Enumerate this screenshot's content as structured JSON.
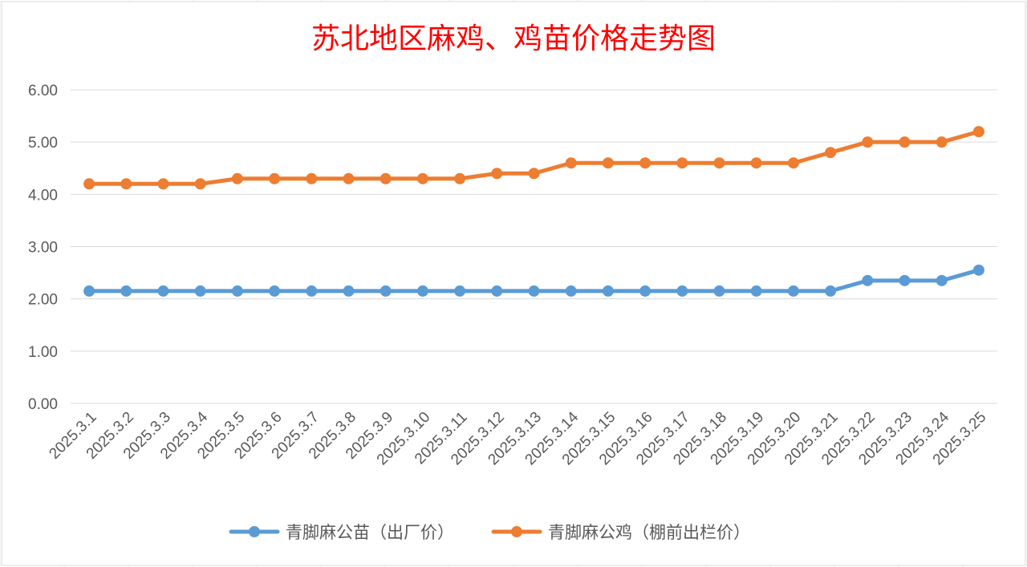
{
  "chart_data": {
    "type": "line",
    "title": "苏北地区麻鸡、鸡苗价格走势图",
    "xlabel": "",
    "ylabel": "",
    "ylim": [
      0,
      6
    ],
    "yticks": [
      "0.00",
      "1.00",
      "2.00",
      "3.00",
      "4.00",
      "5.00",
      "6.00"
    ],
    "grid": true,
    "legend_position": "bottom",
    "categories": [
      "2025.3.1",
      "2025.3.2",
      "2025.3.3",
      "2025.3.4",
      "2025.3.5",
      "2025.3.6",
      "2025.3.7",
      "2025.3.8",
      "2025.3.9",
      "2025.3.10",
      "2025.3.11",
      "2025.3.12",
      "2025.3.13",
      "2025.3.14",
      "2025.3.15",
      "2025.3.16",
      "2025.3.17",
      "2025.3.18",
      "2025.3.19",
      "2025.3.20",
      "2025.3.21",
      "2025.3.22",
      "2025.3.23",
      "2025.3.24",
      "2025.3.25"
    ],
    "series": [
      {
        "name": "青脚麻公苗（出厂价）",
        "color": "#5b9bd5",
        "values": [
          2.15,
          2.15,
          2.15,
          2.15,
          2.15,
          2.15,
          2.15,
          2.15,
          2.15,
          2.15,
          2.15,
          2.15,
          2.15,
          2.15,
          2.15,
          2.15,
          2.15,
          2.15,
          2.15,
          2.15,
          2.15,
          2.35,
          2.35,
          2.35,
          2.55
        ]
      },
      {
        "name": "青脚麻公鸡（棚前出栏价）",
        "color": "#ed7d31",
        "values": [
          4.2,
          4.2,
          4.2,
          4.2,
          4.3,
          4.3,
          4.3,
          4.3,
          4.3,
          4.3,
          4.3,
          4.4,
          4.4,
          4.6,
          4.6,
          4.6,
          4.6,
          4.6,
          4.6,
          4.6,
          4.8,
          5.0,
          5.0,
          5.0,
          5.2
        ]
      }
    ]
  }
}
